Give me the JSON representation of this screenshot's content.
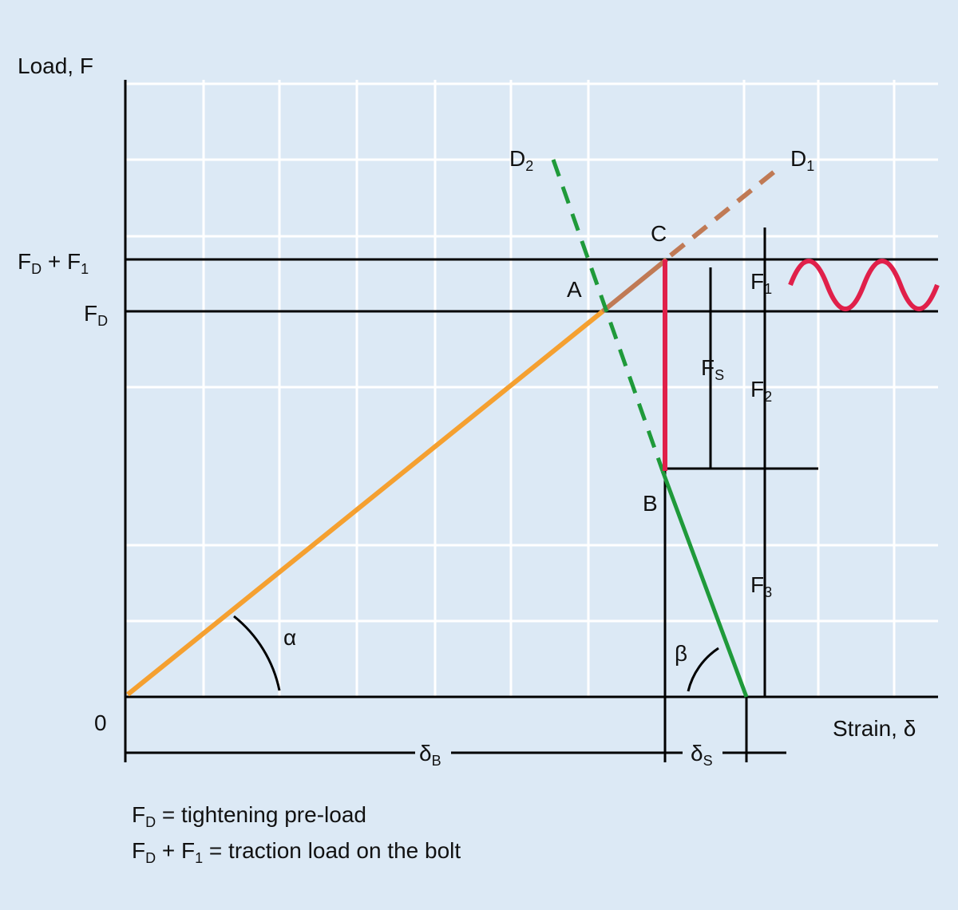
{
  "labels": [
    {
      "parts": [
        {
          "text": "Load, F"
        }
      ]
    },
    {
      "parts": [
        {
          "text": "F"
        },
        {
          "sub": "D"
        },
        {
          "text": " + F"
        },
        {
          "sub": "1"
        }
      ]
    },
    {
      "parts": [
        {
          "text": "F"
        },
        {
          "sub": "D"
        }
      ]
    },
    {
      "parts": [
        {
          "text": "0"
        }
      ]
    },
    {
      "parts": [
        {
          "text": "Strain, δ"
        }
      ]
    },
    {
      "parts": [
        {
          "text": "D"
        },
        {
          "sub": "2"
        }
      ]
    },
    {
      "parts": [
        {
          "text": "D"
        },
        {
          "sub": "1"
        }
      ]
    },
    {
      "parts": [
        {
          "text": "C"
        }
      ]
    },
    {
      "parts": [
        {
          "text": "A"
        }
      ]
    },
    {
      "parts": [
        {
          "text": "B"
        }
      ]
    },
    {
      "parts": [
        {
          "text": "F"
        },
        {
          "sub": "1"
        }
      ]
    },
    {
      "parts": [
        {
          "text": "F"
        },
        {
          "sub": "S"
        }
      ]
    },
    {
      "parts": [
        {
          "text": "F"
        },
        {
          "sub": "2"
        }
      ]
    },
    {
      "parts": [
        {
          "text": "F"
        },
        {
          "sub": "3"
        }
      ]
    },
    {
      "parts": [
        {
          "text": "α"
        }
      ]
    },
    {
      "parts": [
        {
          "text": "β"
        }
      ]
    },
    {
      "parts": [
        {
          "text": "δ"
        },
        {
          "sub": "B"
        }
      ]
    },
    {
      "parts": [
        {
          "text": "δ"
        },
        {
          "sub": "S"
        }
      ]
    }
  ],
  "legend": [
    {
      "parts": [
        {
          "text": "F"
        },
        {
          "sub": "D"
        },
        {
          "text": " = tightening pre-load"
        }
      ]
    },
    {
      "parts": [
        {
          "text": "F"
        },
        {
          "sub": "D"
        },
        {
          "text": " + F"
        },
        {
          "sub": "1"
        },
        {
          "text": " = traction load on the bolt"
        }
      ]
    }
  ]
}
